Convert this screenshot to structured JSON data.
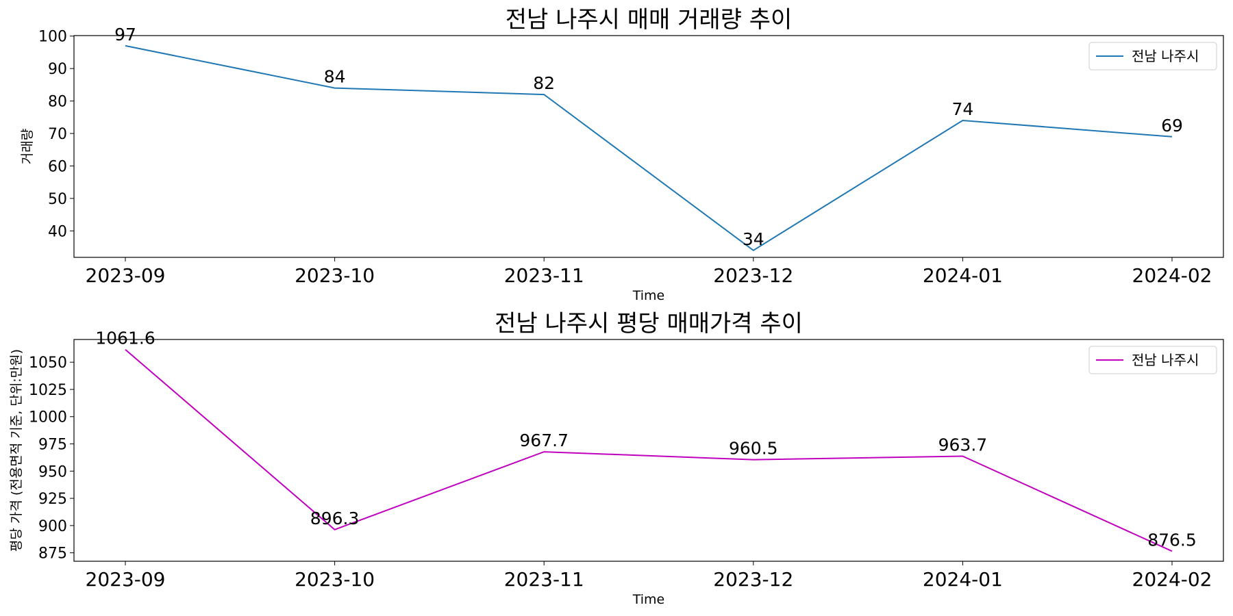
{
  "chart_data": [
    {
      "type": "line",
      "title": "전남 나주시 매매 거래량 추이",
      "xlabel": "Time",
      "ylabel": "거래량",
      "categories": [
        "2023-09",
        "2023-10",
        "2023-11",
        "2023-12",
        "2024-01",
        "2024-02"
      ],
      "series": [
        {
          "name": "전남 나주시",
          "values": [
            97,
            84,
            82,
            34,
            74,
            69
          ],
          "color": "#1f77b4"
        }
      ],
      "data_labels": [
        "97",
        "84",
        "82",
        "34",
        "74",
        "69"
      ],
      "yticks": [
        40,
        50,
        60,
        70,
        80,
        90,
        100
      ],
      "ylim": [
        31.85,
        100.15
      ],
      "legend": "top-right",
      "grid": false
    },
    {
      "type": "line",
      "title": "전남 나주시 평당 매매가격 추이",
      "xlabel": "Time",
      "ylabel": "평당 가격 (전용면적 기준, 단위:만원)",
      "categories": [
        "2023-09",
        "2023-10",
        "2023-11",
        "2023-12",
        "2024-01",
        "2024-02"
      ],
      "series": [
        {
          "name": "전남 나주시",
          "values": [
            1061.6,
            896.3,
            967.7,
            960.5,
            963.7,
            876.5
          ],
          "color": "#bf00bf"
        }
      ],
      "data_labels": [
        "1061.6",
        "896.3",
        "967.7",
        "960.5",
        "963.7",
        "876.5"
      ],
      "yticks": [
        875,
        900,
        925,
        950,
        975,
        1000,
        1025,
        1050
      ],
      "ylim": [
        867.25,
        1070.85
      ],
      "legend": "top-right",
      "grid": false
    }
  ]
}
